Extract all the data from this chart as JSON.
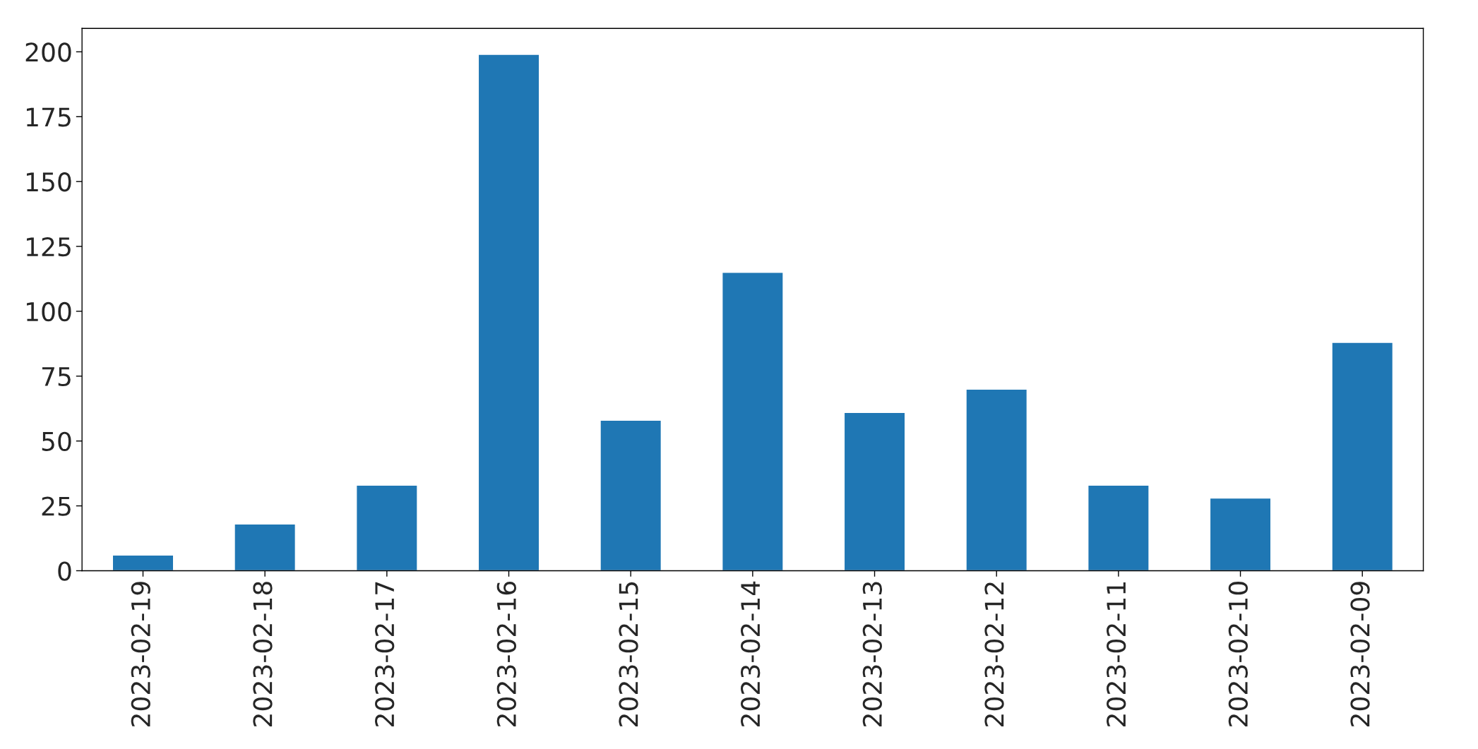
{
  "chart_data": {
    "type": "bar",
    "categories": [
      "2023-02-19",
      "2023-02-18",
      "2023-02-17",
      "2023-02-16",
      "2023-02-15",
      "2023-02-14",
      "2023-02-13",
      "2023-02-12",
      "2023-02-11",
      "2023-02-10",
      "2023-02-09"
    ],
    "values": [
      6,
      18,
      33,
      199,
      58,
      115,
      61,
      70,
      33,
      28,
      88
    ],
    "color": "#1f77b4",
    "ylim": [
      0,
      209
    ],
    "yticks": [
      0,
      25,
      50,
      75,
      100,
      125,
      150,
      175,
      200
    ],
    "grid": false,
    "legend": false
  }
}
